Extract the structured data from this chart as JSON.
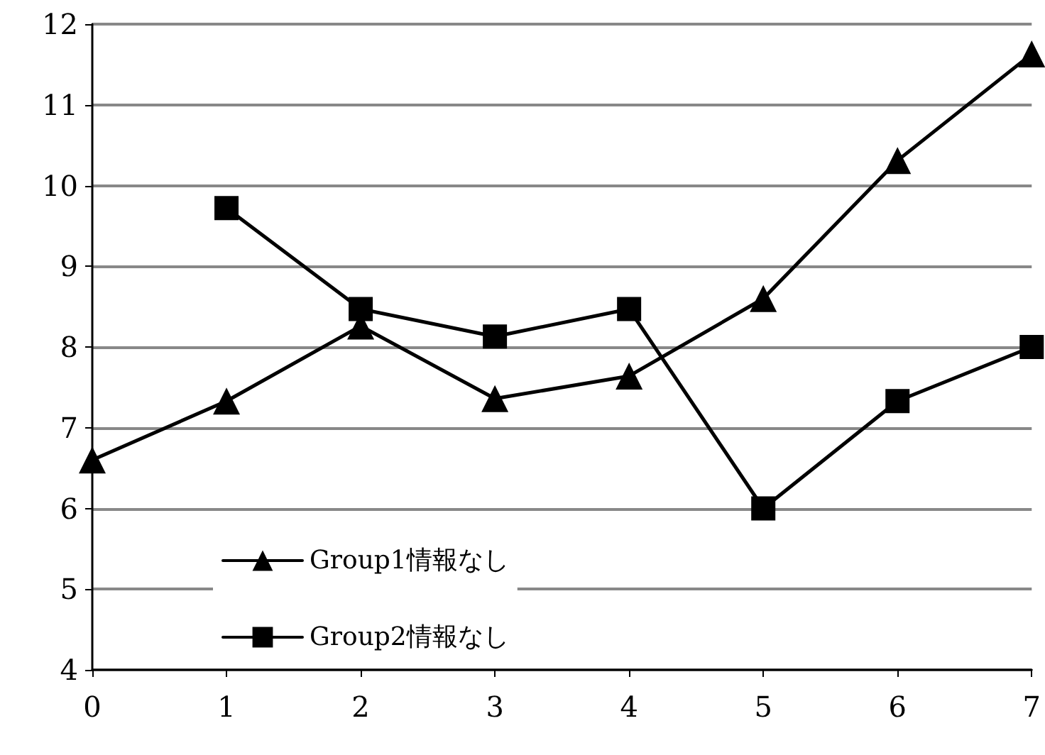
{
  "chart_data": {
    "type": "line",
    "x": [
      0,
      1,
      2,
      3,
      4,
      5,
      6,
      7
    ],
    "series": [
      {
        "name": "Group1情報なし",
        "color": "#000000",
        "marker": "triangle",
        "values": [
          6.6,
          7.33,
          8.26,
          7.36,
          7.64,
          8.6,
          10.31,
          11.63
        ]
      },
      {
        "name": "Group2情報なし",
        "color": "#000000",
        "marker": "square",
        "values": [
          null,
          9.72,
          8.47,
          8.13,
          8.47,
          6.0,
          7.33,
          8.0
        ]
      }
    ],
    "xlim": [
      0,
      7
    ],
    "xticks": [
      0,
      1,
      2,
      3,
      4,
      5,
      6,
      7
    ],
    "ylim": [
      4,
      12
    ],
    "yticks": [
      4,
      5,
      6,
      7,
      8,
      9,
      10,
      11,
      12
    ],
    "grid": "y",
    "legend": "bottom left",
    "line_style": "solid"
  }
}
